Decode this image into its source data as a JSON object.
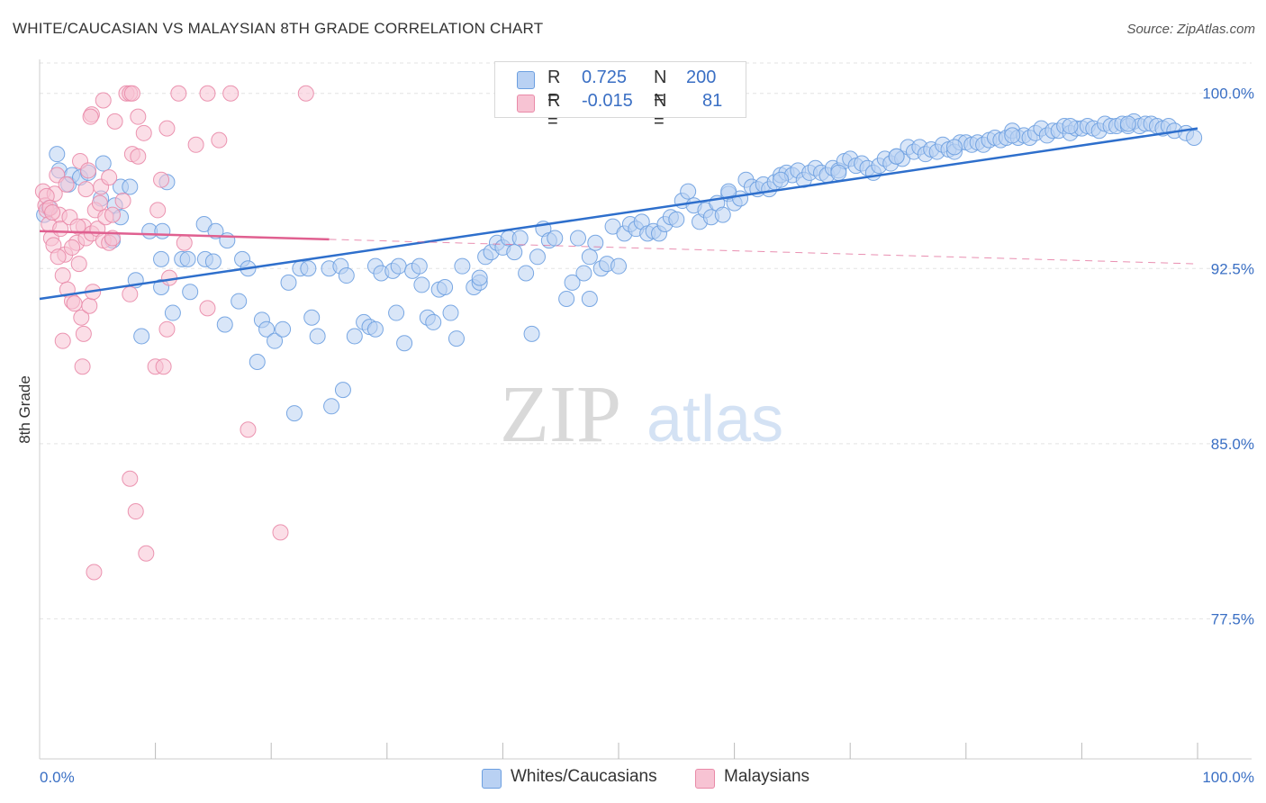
{
  "title": "WHITE/CAUCASIAN VS MALAYSIAN 8TH GRADE CORRELATION CHART",
  "source": "Source: ZipAtlas.com",
  "watermark": {
    "zip": "ZIP",
    "atlas": "atlas"
  },
  "colors": {
    "blue": "#6c9fe0",
    "blue_fill": "#b9d1f3",
    "blue_line": "#2e6fcc",
    "pink": "#e98aa8",
    "pink_fill": "#f7c3d3",
    "pink_line": "#e06090",
    "axis_text": "#3a6fc4",
    "grid": "#e3e3e3"
  },
  "legend": {
    "r_label": "R =",
    "n_label": "N =",
    "rows": [
      {
        "r": "0.725",
        "n": "200"
      },
      {
        "r": "-0.015",
        "n": "81"
      }
    ]
  },
  "chart_data": {
    "type": "scatter",
    "xlabel": "",
    "ylabel": "8th Grade",
    "xlim": [
      0,
      100
    ],
    "ylim": [
      71.5,
      101.3
    ],
    "x_tick_labels": [
      "0.0%",
      "100.0%"
    ],
    "y_ticks": [
      77.5,
      85.0,
      92.5,
      100.0
    ],
    "y_tick_labels": [
      "77.5%",
      "85.0%",
      "92.5%",
      "100.0%"
    ],
    "grid": "horizontal dashed",
    "legend_position": "top-center",
    "series": [
      {
        "name": "Whites/Caucasians",
        "r": 0.725,
        "n": 200,
        "trend": {
          "x": [
            0,
            100
          ],
          "y": [
            91.2,
            98.5
          ],
          "dashed_from": null
        },
        "points": [
          [
            1.5,
            97.4
          ],
          [
            1.7,
            96.7
          ],
          [
            2.5,
            96.1
          ],
          [
            2.8,
            96.5
          ],
          [
            3.5,
            96.4
          ],
          [
            4.2,
            96.6
          ],
          [
            5.5,
            97.0
          ],
          [
            5.3,
            95.5
          ],
          [
            7.0,
            96.0
          ],
          [
            7.8,
            96.0
          ],
          [
            0.4,
            94.8
          ],
          [
            0.8,
            95.1
          ],
          [
            6.5,
            95.2
          ],
          [
            7.0,
            94.7
          ],
          [
            6.3,
            93.7
          ],
          [
            11.0,
            96.2
          ],
          [
            9.5,
            94.1
          ],
          [
            10.6,
            94.1
          ],
          [
            14.2,
            94.4
          ],
          [
            15.2,
            94.1
          ],
          [
            16.2,
            93.7
          ],
          [
            8.3,
            92.0
          ],
          [
            10.5,
            92.9
          ],
          [
            12.3,
            92.9
          ],
          [
            12.8,
            92.9
          ],
          [
            14.3,
            92.9
          ],
          [
            15.0,
            92.8
          ],
          [
            17.5,
            92.9
          ],
          [
            18.0,
            92.5
          ],
          [
            11.5,
            90.6
          ],
          [
            8.8,
            89.6
          ],
          [
            13.0,
            91.5
          ],
          [
            10.5,
            91.7
          ],
          [
            16.0,
            90.1
          ],
          [
            17.2,
            91.1
          ],
          [
            19.2,
            90.3
          ],
          [
            19.6,
            89.9
          ],
          [
            20.3,
            89.4
          ],
          [
            21.0,
            89.9
          ],
          [
            18.8,
            88.5
          ],
          [
            21.5,
            91.9
          ],
          [
            22.5,
            92.5
          ],
          [
            23.2,
            92.5
          ],
          [
            23.5,
            90.4
          ],
          [
            24.0,
            89.6
          ],
          [
            25.0,
            92.5
          ],
          [
            26.0,
            92.6
          ],
          [
            26.5,
            92.2
          ],
          [
            27.2,
            89.6
          ],
          [
            28.0,
            90.2
          ],
          [
            28.5,
            90.0
          ],
          [
            29.0,
            92.6
          ],
          [
            29.5,
            92.3
          ],
          [
            30.5,
            92.4
          ],
          [
            31.0,
            92.6
          ],
          [
            30.8,
            90.6
          ],
          [
            31.5,
            89.3
          ],
          [
            32.2,
            92.4
          ],
          [
            32.8,
            92.6
          ],
          [
            33.0,
            91.8
          ],
          [
            33.5,
            90.4
          ],
          [
            34.0,
            90.2
          ],
          [
            34.5,
            91.6
          ],
          [
            35.0,
            91.7
          ],
          [
            35.5,
            90.6
          ],
          [
            36.0,
            89.5
          ],
          [
            36.5,
            92.6
          ],
          [
            37.5,
            91.7
          ],
          [
            38.0,
            91.9
          ],
          [
            38.5,
            93.0
          ],
          [
            39.0,
            93.2
          ],
          [
            39.5,
            93.6
          ],
          [
            40.0,
            93.4
          ],
          [
            40.5,
            93.8
          ],
          [
            41.0,
            93.2
          ],
          [
            41.5,
            93.8
          ],
          [
            42.0,
            92.3
          ],
          [
            42.5,
            89.7
          ],
          [
            43.0,
            93.0
          ],
          [
            43.5,
            94.2
          ],
          [
            44.0,
            93.7
          ],
          [
            44.5,
            93.8
          ],
          [
            45.5,
            91.2
          ],
          [
            46.0,
            91.9
          ],
          [
            46.5,
            93.8
          ],
          [
            47.0,
            92.3
          ],
          [
            47.5,
            93.0
          ],
          [
            48.0,
            93.6
          ],
          [
            48.5,
            92.5
          ],
          [
            49.0,
            92.7
          ],
          [
            50.0,
            92.6
          ],
          [
            49.5,
            94.3
          ],
          [
            50.5,
            94.0
          ],
          [
            51.0,
            94.4
          ],
          [
            51.5,
            94.2
          ],
          [
            52.0,
            94.5
          ],
          [
            52.5,
            94.0
          ],
          [
            53.0,
            94.1
          ],
          [
            53.5,
            94.0
          ],
          [
            54.0,
            94.4
          ],
          [
            54.5,
            94.7
          ],
          [
            55.0,
            94.6
          ],
          [
            55.5,
            95.4
          ],
          [
            56.0,
            95.8
          ],
          [
            56.5,
            95.2
          ],
          [
            57.0,
            94.5
          ],
          [
            57.5,
            95.0
          ],
          [
            58.0,
            94.7
          ],
          [
            58.5,
            95.3
          ],
          [
            59.0,
            94.8
          ],
          [
            59.5,
            95.7
          ],
          [
            60.0,
            95.3
          ],
          [
            60.5,
            95.5
          ],
          [
            61.0,
            96.3
          ],
          [
            61.5,
            96.0
          ],
          [
            62.0,
            95.9
          ],
          [
            62.5,
            96.1
          ],
          [
            63.0,
            95.9
          ],
          [
            63.5,
            96.2
          ],
          [
            64.0,
            96.5
          ],
          [
            64.5,
            96.6
          ],
          [
            65.0,
            96.5
          ],
          [
            65.5,
            96.7
          ],
          [
            66.0,
            96.3
          ],
          [
            66.5,
            96.6
          ],
          [
            67.0,
            96.8
          ],
          [
            67.5,
            96.6
          ],
          [
            68.0,
            96.5
          ],
          [
            68.5,
            96.8
          ],
          [
            69.0,
            96.7
          ],
          [
            69.5,
            97.1
          ],
          [
            70.0,
            97.2
          ],
          [
            70.5,
            96.9
          ],
          [
            71.0,
            97.0
          ],
          [
            71.5,
            96.8
          ],
          [
            72.0,
            96.6
          ],
          [
            72.5,
            96.9
          ],
          [
            73.0,
            97.2
          ],
          [
            73.5,
            97.0
          ],
          [
            74.0,
            97.3
          ],
          [
            74.5,
            97.2
          ],
          [
            75.0,
            97.7
          ],
          [
            75.5,
            97.5
          ],
          [
            76.0,
            97.7
          ],
          [
            76.5,
            97.4
          ],
          [
            77.0,
            97.6
          ],
          [
            77.5,
            97.5
          ],
          [
            78.0,
            97.8
          ],
          [
            78.5,
            97.6
          ],
          [
            79.0,
            97.5
          ],
          [
            79.5,
            97.9
          ],
          [
            80.0,
            97.9
          ],
          [
            80.5,
            97.8
          ],
          [
            81.0,
            97.9
          ],
          [
            81.5,
            97.8
          ],
          [
            82.0,
            98.0
          ],
          [
            82.5,
            98.1
          ],
          [
            83.0,
            98.0
          ],
          [
            83.5,
            98.1
          ],
          [
            84.0,
            98.4
          ],
          [
            84.5,
            98.1
          ],
          [
            85.0,
            98.2
          ],
          [
            85.5,
            98.1
          ],
          [
            86.0,
            98.3
          ],
          [
            86.5,
            98.5
          ],
          [
            87.0,
            98.2
          ],
          [
            87.5,
            98.4
          ],
          [
            88.0,
            98.4
          ],
          [
            88.5,
            98.6
          ],
          [
            89.0,
            98.3
          ],
          [
            89.5,
            98.5
          ],
          [
            90.0,
            98.5
          ],
          [
            90.5,
            98.6
          ],
          [
            91.0,
            98.5
          ],
          [
            91.5,
            98.4
          ],
          [
            92.0,
            98.7
          ],
          [
            92.5,
            98.6
          ],
          [
            93.0,
            98.6
          ],
          [
            93.5,
            98.7
          ],
          [
            94.0,
            98.6
          ],
          [
            94.5,
            98.8
          ],
          [
            95.0,
            98.6
          ],
          [
            95.5,
            98.7
          ],
          [
            96.0,
            98.7
          ],
          [
            96.5,
            98.6
          ],
          [
            97.0,
            98.5
          ],
          [
            97.5,
            98.6
          ],
          [
            98.0,
            98.4
          ],
          [
            99.0,
            98.3
          ],
          [
            99.7,
            98.1
          ],
          [
            59.5,
            95.8
          ],
          [
            64.0,
            96.3
          ],
          [
            69.0,
            96.6
          ],
          [
            74.0,
            97.3
          ],
          [
            79.0,
            97.7
          ],
          [
            84.0,
            98.2
          ],
          [
            89.0,
            98.6
          ],
          [
            94.0,
            98.7
          ],
          [
            26.2,
            87.3
          ],
          [
            25.2,
            86.6
          ],
          [
            22.0,
            86.3
          ],
          [
            29.0,
            89.9
          ],
          [
            47.5,
            91.2
          ],
          [
            38.0,
            92.1
          ]
        ]
      },
      {
        "name": "Malaysians",
        "r": -0.015,
        "n": 81,
        "trend": {
          "x": [
            0,
            100
          ],
          "y": [
            94.1,
            92.7
          ],
          "solid_until_x": 25
        },
        "points": [
          [
            0.3,
            95.8
          ],
          [
            0.5,
            95.2
          ],
          [
            0.6,
            95.0
          ],
          [
            0.8,
            94.4
          ],
          [
            1.0,
            93.8
          ],
          [
            1.2,
            93.5
          ],
          [
            1.3,
            95.7
          ],
          [
            1.5,
            96.5
          ],
          [
            1.7,
            94.8
          ],
          [
            1.8,
            94.2
          ],
          [
            2.0,
            92.2
          ],
          [
            2.2,
            93.1
          ],
          [
            2.4,
            91.6
          ],
          [
            2.6,
            94.7
          ],
          [
            2.8,
            91.1
          ],
          [
            3.0,
            91.0
          ],
          [
            3.2,
            93.6
          ],
          [
            3.4,
            92.7
          ],
          [
            3.6,
            90.4
          ],
          [
            3.8,
            94.3
          ],
          [
            4.0,
            93.8
          ],
          [
            4.3,
            90.9
          ],
          [
            4.5,
            94.0
          ],
          [
            4.8,
            95.0
          ],
          [
            5.0,
            94.2
          ],
          [
            5.2,
            95.3
          ],
          [
            5.5,
            93.7
          ],
          [
            5.7,
            94.7
          ],
          [
            6.0,
            93.6
          ],
          [
            6.3,
            94.8
          ],
          [
            4.5,
            99.1
          ],
          [
            4.4,
            99.0
          ],
          [
            5.5,
            99.7
          ],
          [
            6.5,
            98.8
          ],
          [
            7.5,
            100.0
          ],
          [
            7.8,
            100.0
          ],
          [
            8.0,
            100.0
          ],
          [
            8.5,
            99.0
          ],
          [
            9.0,
            98.3
          ],
          [
            11.0,
            98.5
          ],
          [
            12.0,
            100.0
          ],
          [
            14.5,
            100.0
          ],
          [
            16.5,
            100.0
          ],
          [
            23.0,
            100.0
          ],
          [
            13.5,
            97.8
          ],
          [
            15.5,
            98.0
          ],
          [
            8.0,
            97.4
          ],
          [
            8.5,
            97.3
          ],
          [
            10.5,
            96.3
          ],
          [
            3.5,
            97.1
          ],
          [
            4.2,
            96.7
          ],
          [
            5.3,
            96.0
          ],
          [
            7.2,
            95.4
          ],
          [
            10.2,
            95.0
          ],
          [
            12.5,
            93.6
          ],
          [
            6.3,
            93.8
          ],
          [
            7.8,
            91.4
          ],
          [
            11.2,
            92.1
          ],
          [
            14.5,
            90.8
          ],
          [
            4.6,
            91.5
          ],
          [
            2.0,
            89.4
          ],
          [
            3.8,
            89.7
          ],
          [
            3.7,
            88.3
          ],
          [
            11.0,
            89.9
          ],
          [
            10.0,
            88.3
          ],
          [
            10.7,
            88.3
          ],
          [
            18.0,
            85.6
          ],
          [
            7.8,
            83.5
          ],
          [
            8.3,
            82.1
          ],
          [
            9.2,
            80.3
          ],
          [
            4.7,
            79.5
          ],
          [
            20.8,
            81.2
          ],
          [
            0.6,
            95.6
          ],
          [
            0.9,
            95.1
          ],
          [
            1.1,
            94.9
          ],
          [
            2.3,
            96.1
          ],
          [
            4.0,
            95.9
          ],
          [
            3.3,
            94.3
          ],
          [
            6.0,
            96.4
          ],
          [
            2.8,
            93.4
          ],
          [
            1.6,
            93.0
          ]
        ]
      }
    ]
  }
}
